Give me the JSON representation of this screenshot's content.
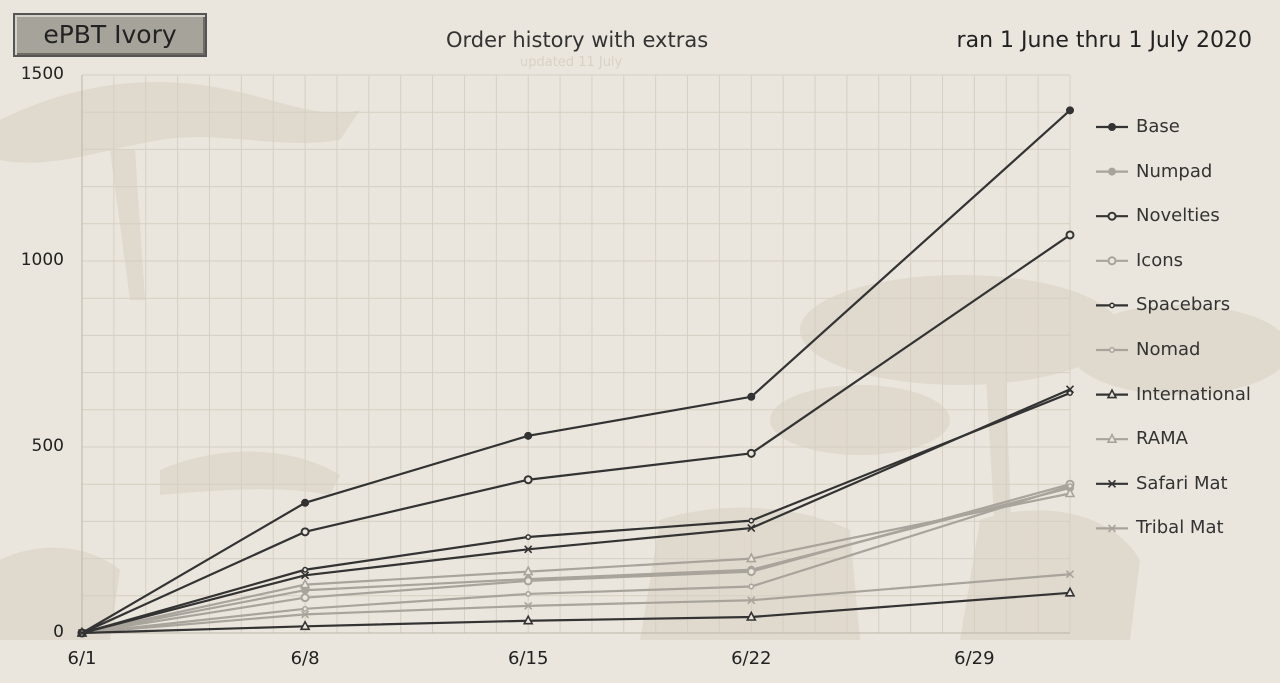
{
  "badge": {
    "label": "ePBT Ivory"
  },
  "header": {
    "title": "Order history with extras",
    "subtitle": "updated 11 July",
    "date_range": "ran 1 June thru 1 July 2020"
  },
  "colors": {
    "dark": "#333333",
    "light": "#a8a49c",
    "grid": "#d6cfc2",
    "background": "#ebe6dd"
  },
  "chart_data": {
    "type": "line",
    "title": "Order history with extras",
    "subtitle": "updated 11 July",
    "x": [
      "6/1",
      "6/8",
      "6/15",
      "6/22",
      "7/2"
    ],
    "x_tick_labels": [
      "6/1",
      "6/8",
      "6/15",
      "6/22",
      "6/29"
    ],
    "ylim": [
      0,
      1500
    ],
    "y_ticks": [
      0,
      500,
      1000,
      1500
    ],
    "grid": true,
    "legend_position": "right",
    "series": [
      {
        "name": "Base",
        "values": [
          0,
          350,
          530,
          635,
          1405
        ],
        "marker": "filled-circle",
        "tone": "dark"
      },
      {
        "name": "Numpad",
        "values": [
          0,
          115,
          145,
          170,
          390
        ],
        "marker": "filled-circle",
        "tone": "light"
      },
      {
        "name": "Novelties",
        "values": [
          0,
          272,
          412,
          483,
          1070
        ],
        "marker": "open-circle",
        "tone": "dark"
      },
      {
        "name": "Icons",
        "values": [
          0,
          95,
          140,
          165,
          400
        ],
        "marker": "open-circle",
        "tone": "light"
      },
      {
        "name": "Spacebars",
        "values": [
          0,
          170,
          258,
          302,
          645
        ],
        "marker": "small-dot",
        "tone": "dark"
      },
      {
        "name": "Nomad",
        "values": [
          0,
          65,
          105,
          125,
          395
        ],
        "marker": "small-dot",
        "tone": "light"
      },
      {
        "name": "International",
        "values": [
          0,
          18,
          33,
          43,
          108
        ],
        "marker": "open-triangle",
        "tone": "dark"
      },
      {
        "name": "RAMA",
        "values": [
          0,
          130,
          165,
          200,
          375
        ],
        "marker": "open-triangle",
        "tone": "light"
      },
      {
        "name": "Safari Mat",
        "values": [
          0,
          155,
          225,
          282,
          655
        ],
        "marker": "x",
        "tone": "dark"
      },
      {
        "name": "Tribal Mat",
        "values": [
          0,
          50,
          73,
          88,
          158
        ],
        "marker": "x",
        "tone": "light"
      }
    ]
  }
}
